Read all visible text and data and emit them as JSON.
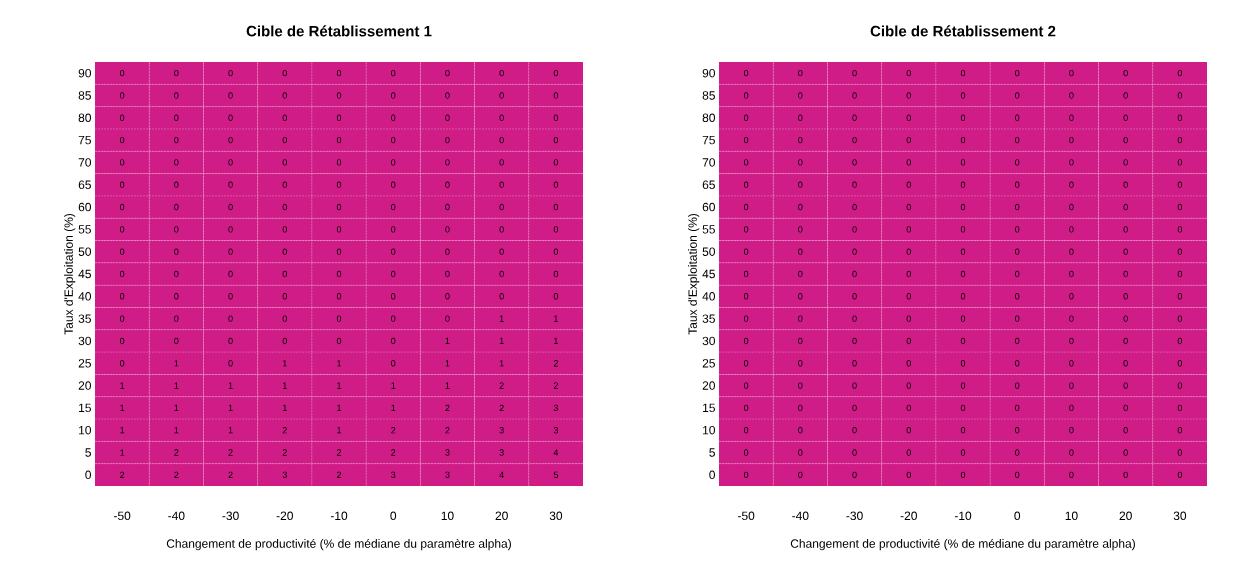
{
  "chart_data": [
    {
      "type": "heatmap",
      "title": "Cible de Rétablissement 1",
      "xlabel": "Changement de productivité (% de médiane du paramètre alpha)",
      "ylabel": "Taux d'Exploitation (%)",
      "color": "#cf1c87",
      "grid": true,
      "data_labels": true,
      "categories": [
        "-50",
        "-40",
        "-30",
        "-20",
        "-10",
        "0",
        "10",
        "20",
        "30"
      ],
      "y_categories": [
        "90",
        "85",
        "80",
        "75",
        "70",
        "65",
        "60",
        "55",
        "50",
        "45",
        "40",
        "35",
        "30",
        "25",
        "20",
        "15",
        "10",
        "5",
        "0"
      ],
      "cells": [
        [
          0,
          0,
          0,
          0,
          0,
          0,
          0,
          0,
          0
        ],
        [
          0,
          0,
          0,
          0,
          0,
          0,
          0,
          0,
          0
        ],
        [
          0,
          0,
          0,
          0,
          0,
          0,
          0,
          0,
          0
        ],
        [
          0,
          0,
          0,
          0,
          0,
          0,
          0,
          0,
          0
        ],
        [
          0,
          0,
          0,
          0,
          0,
          0,
          0,
          0,
          0
        ],
        [
          0,
          0,
          0,
          0,
          0,
          0,
          0,
          0,
          0
        ],
        [
          0,
          0,
          0,
          0,
          0,
          0,
          0,
          0,
          0
        ],
        [
          0,
          0,
          0,
          0,
          0,
          0,
          0,
          0,
          0
        ],
        [
          0,
          0,
          0,
          0,
          0,
          0,
          0,
          0,
          0
        ],
        [
          0,
          0,
          0,
          0,
          0,
          0,
          0,
          0,
          0
        ],
        [
          0,
          0,
          0,
          0,
          0,
          0,
          0,
          0,
          0
        ],
        [
          0,
          0,
          0,
          0,
          0,
          0,
          0,
          1,
          1
        ],
        [
          0,
          0,
          0,
          0,
          0,
          0,
          1,
          1,
          1
        ],
        [
          0,
          1,
          0,
          1,
          1,
          0,
          1,
          1,
          2
        ],
        [
          1,
          1,
          1,
          1,
          1,
          1,
          1,
          2,
          2
        ],
        [
          1,
          1,
          1,
          1,
          1,
          1,
          2,
          2,
          3
        ],
        [
          1,
          1,
          1,
          2,
          1,
          2,
          2,
          3,
          3
        ],
        [
          1,
          2,
          2,
          2,
          2,
          2,
          3,
          3,
          4
        ],
        [
          2,
          2,
          2,
          3,
          2,
          3,
          3,
          4,
          5
        ]
      ]
    },
    {
      "type": "heatmap",
      "title": "Cible de Rétablissement 2",
      "xlabel": "Changement de productivité (% de médiane du paramètre alpha)",
      "ylabel": "Taux d'Exploitation (%)",
      "color": "#cf1c87",
      "grid": true,
      "data_labels": true,
      "categories": [
        "-50",
        "-40",
        "-30",
        "-20",
        "-10",
        "0",
        "10",
        "20",
        "30"
      ],
      "y_categories": [
        "90",
        "85",
        "80",
        "75",
        "70",
        "65",
        "60",
        "55",
        "50",
        "45",
        "40",
        "35",
        "30",
        "25",
        "20",
        "15",
        "10",
        "5",
        "0"
      ],
      "cells": [
        [
          0,
          0,
          0,
          0,
          0,
          0,
          0,
          0,
          0
        ],
        [
          0,
          0,
          0,
          0,
          0,
          0,
          0,
          0,
          0
        ],
        [
          0,
          0,
          0,
          0,
          0,
          0,
          0,
          0,
          0
        ],
        [
          0,
          0,
          0,
          0,
          0,
          0,
          0,
          0,
          0
        ],
        [
          0,
          0,
          0,
          0,
          0,
          0,
          0,
          0,
          0
        ],
        [
          0,
          0,
          0,
          0,
          0,
          0,
          0,
          0,
          0
        ],
        [
          0,
          0,
          0,
          0,
          0,
          0,
          0,
          0,
          0
        ],
        [
          0,
          0,
          0,
          0,
          0,
          0,
          0,
          0,
          0
        ],
        [
          0,
          0,
          0,
          0,
          0,
          0,
          0,
          0,
          0
        ],
        [
          0,
          0,
          0,
          0,
          0,
          0,
          0,
          0,
          0
        ],
        [
          0,
          0,
          0,
          0,
          0,
          0,
          0,
          0,
          0
        ],
        [
          0,
          0,
          0,
          0,
          0,
          0,
          0,
          0,
          0
        ],
        [
          0,
          0,
          0,
          0,
          0,
          0,
          0,
          0,
          0
        ],
        [
          0,
          0,
          0,
          0,
          0,
          0,
          0,
          0,
          0
        ],
        [
          0,
          0,
          0,
          0,
          0,
          0,
          0,
          0,
          0
        ],
        [
          0,
          0,
          0,
          0,
          0,
          0,
          0,
          0,
          0
        ],
        [
          0,
          0,
          0,
          0,
          0,
          0,
          0,
          0,
          0
        ],
        [
          0,
          0,
          0,
          0,
          0,
          0,
          0,
          0,
          0
        ],
        [
          0,
          0,
          0,
          0,
          0,
          0,
          0,
          0,
          0
        ]
      ]
    }
  ]
}
